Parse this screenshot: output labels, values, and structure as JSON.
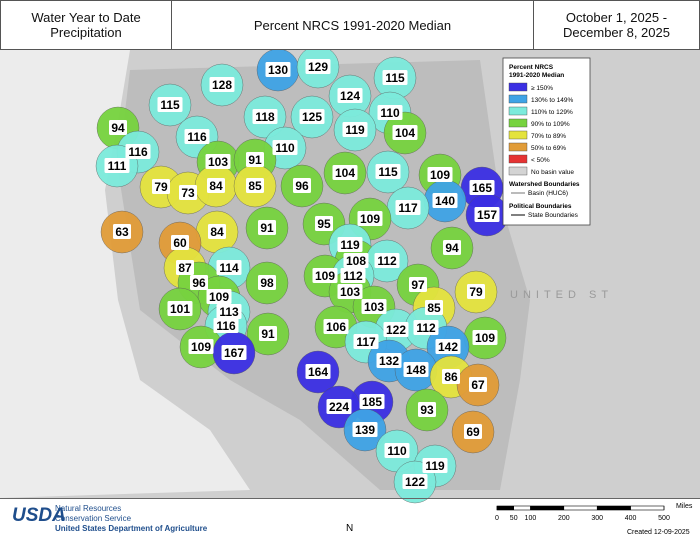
{
  "header": {
    "title": "Water Year to Date Precipitation",
    "subtitle": "Percent NRCS 1991-2020 Median",
    "dates": [
      "October 1, 2025 -",
      "December 8, 2025"
    ]
  },
  "map": {
    "basin_values": [
      130,
      129,
      115,
      128,
      124,
      115,
      94,
      118,
      125,
      110,
      119,
      104,
      116,
      116,
      110,
      103,
      91,
      111,
      104,
      115,
      109,
      165,
      79,
      73,
      84,
      85,
      96,
      140,
      117,
      157,
      109,
      95,
      91,
      63,
      84,
      60,
      119,
      94,
      108,
      112,
      87,
      114,
      109,
      112,
      97,
      79,
      96,
      98,
      103,
      109,
      101,
      85,
      113,
      103,
      106,
      122,
      112,
      116,
      91,
      109,
      117,
      142,
      109,
      167,
      132,
      148,
      164,
      86,
      67,
      185,
      224,
      93,
      139,
      69,
      110,
      119,
      122
    ],
    "country_label": "UNITED ST"
  },
  "legend": {
    "title": [
      "Percent NRCS",
      "1991-2020 Median"
    ],
    "bins": [
      {
        "label": "≥ 150%",
        "color": "#3b2fe3",
        "min": 150
      },
      {
        "label": "130% to 149%",
        "color": "#3fa3e6",
        "min": 130
      },
      {
        "label": "110% to 129%",
        "color": "#7cebdc",
        "min": 110
      },
      {
        "label": "90% to 109%",
        "color": "#77d33f",
        "min": 90
      },
      {
        "label": "70% to 89%",
        "color": "#e4e33e",
        "min": 70
      },
      {
        "label": "50% to 69%",
        "color": "#e19c38",
        "min": 50
      },
      {
        "label": "< 50%",
        "color": "#e53333"
      },
      {
        "label": "No basin value",
        "color": "#d4d4d4"
      }
    ],
    "watershed_title": "Watershed Boundaries",
    "watershed_item": "Basin (HUC6)",
    "political_title": "Political Boundaries",
    "political_item": "State Boundaries"
  },
  "footer": {
    "logo": "USDA",
    "agency": [
      "Natural Resources",
      "Conservation Service"
    ],
    "department": "United States Department of Agriculture",
    "north": "N",
    "scale_ticks": [
      0,
      50,
      100,
      200,
      300,
      400,
      500
    ],
    "scale_unit": "Miles",
    "created": "Created 12-09-2025"
  }
}
